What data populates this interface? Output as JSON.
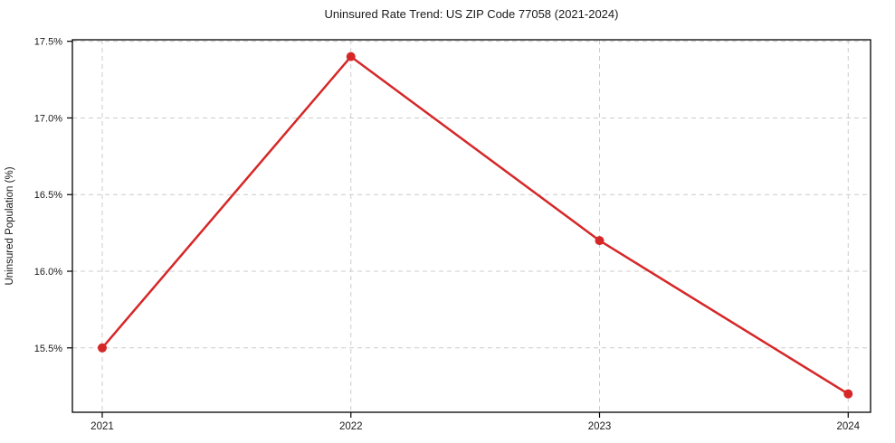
{
  "chart_data": {
    "type": "line",
    "title": "Uninsured Rate Trend: US ZIP Code 77058 (2021-2024)",
    "xlabel": "",
    "ylabel": "Uninsured Population (%)",
    "x": [
      2021,
      2022,
      2023,
      2024
    ],
    "series": [
      {
        "name": "Uninsured Population (%)",
        "values": [
          15.5,
          17.4,
          16.2,
          15.2
        ],
        "color": "#d62728",
        "marker": "circle"
      }
    ],
    "x_ticks": [
      {
        "value": 2021,
        "label": "2021"
      },
      {
        "value": 2022,
        "label": "2022"
      },
      {
        "value": 2023,
        "label": "2023"
      },
      {
        "value": 2024,
        "label": "2024"
      }
    ],
    "y_ticks": [
      {
        "value": 15.5,
        "label": "15.5%"
      },
      {
        "value": 16.0,
        "label": "16.0%"
      },
      {
        "value": 16.5,
        "label": "16.5%"
      },
      {
        "value": 17.0,
        "label": "17.0%"
      },
      {
        "value": 17.5,
        "label": "17.5%"
      }
    ],
    "xlim": [
      2020.88,
      2024.09
    ],
    "ylim": [
      15.08,
      17.51
    ],
    "grid": true,
    "grid_style": "dashed",
    "grid_color": "#cccccc",
    "axis_color": "#000000",
    "text_color": "#1a1a1a",
    "background": "#ffffff",
    "legend": "none"
  }
}
